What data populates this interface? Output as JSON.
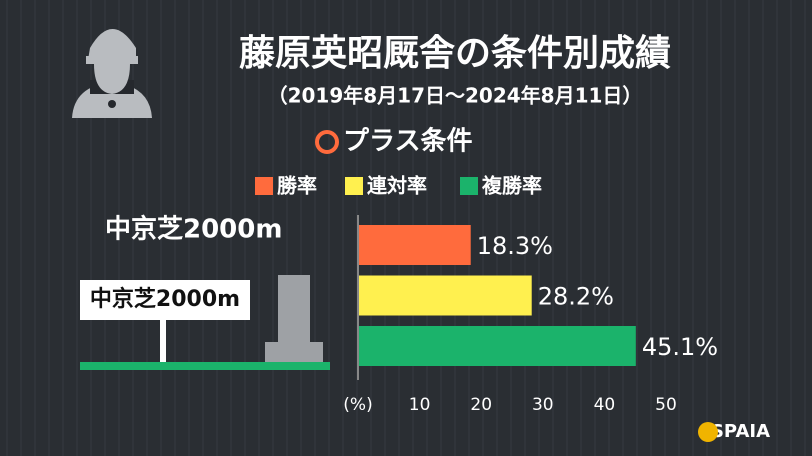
{
  "chart_data": {
    "type": "hbar",
    "title": "藤原英昭厩舎の条件別成績",
    "subtitle": "（2019年8月17日～2024年8月11日）",
    "section": "プラス条件",
    "categories": [
      "中京芝2000m"
    ],
    "series": [
      {
        "name": "勝率",
        "color": "#ff6b3d",
        "values": [
          18.3
        ],
        "value_labels": [
          "18.3%"
        ]
      },
      {
        "name": "連対率",
        "color": "#fff04f",
        "values": [
          28.2
        ],
        "value_labels": [
          "28.2%"
        ]
      },
      {
        "name": "複勝率",
        "color": "#1bb36b",
        "values": [
          45.1
        ],
        "value_labels": [
          "45.1%"
        ]
      }
    ],
    "xlim": [
      0,
      50
    ],
    "xticks": [
      {
        "value": 0,
        "label": "(%)"
      },
      10,
      20,
      30,
      40,
      50
    ],
    "brand": "SPAIA"
  }
}
